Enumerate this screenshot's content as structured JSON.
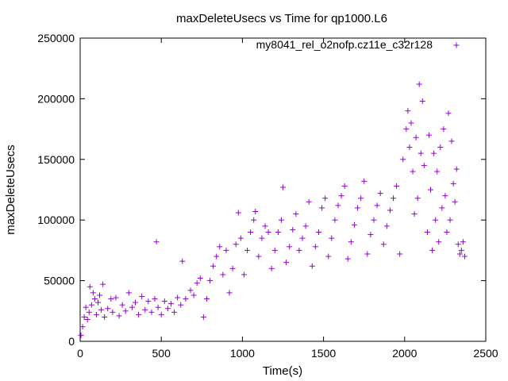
{
  "chart_data": {
    "type": "scatter",
    "title": "maxDeleteUsecs vs Time for qp1000.L6",
    "xlabel": "Time(s)",
    "ylabel": "maxDeleteUsecs",
    "xlim": [
      0,
      2500
    ],
    "ylim": [
      0,
      250000
    ],
    "xticks": [
      0,
      500,
      1000,
      1500,
      2000,
      2500
    ],
    "yticks": [
      0,
      50000,
      100000,
      150000,
      200000,
      250000
    ],
    "legend": {
      "placement": "top-right"
    },
    "series": [
      {
        "name": "my8041_rel_o2nofp.cz11e_c32r128",
        "color": "#9400d3",
        "marker": "plus",
        "points": [
          [
            5,
            5000
          ],
          [
            15,
            12000
          ],
          [
            25,
            20000
          ],
          [
            35,
            28000
          ],
          [
            45,
            18000
          ],
          [
            55,
            24000
          ],
          [
            60,
            45000
          ],
          [
            70,
            30000
          ],
          [
            80,
            40000
          ],
          [
            90,
            35000
          ],
          [
            100,
            22000
          ],
          [
            110,
            32000
          ],
          [
            120,
            38000
          ],
          [
            130,
            26000
          ],
          [
            140,
            47000
          ],
          [
            150,
            20000
          ],
          [
            170,
            27000
          ],
          [
            190,
            35000
          ],
          [
            200,
            24000
          ],
          [
            220,
            36000
          ],
          [
            240,
            21000
          ],
          [
            260,
            30000
          ],
          [
            280,
            25000
          ],
          [
            300,
            40000
          ],
          [
            320,
            28000
          ],
          [
            340,
            32000
          ],
          [
            360,
            22000
          ],
          [
            380,
            37000
          ],
          [
            400,
            26000
          ],
          [
            420,
            33000
          ],
          [
            440,
            24000
          ],
          [
            460,
            35000
          ],
          [
            480,
            28000
          ],
          [
            470,
            82000
          ],
          [
            500,
            22000
          ],
          [
            520,
            33000
          ],
          [
            540,
            27000
          ],
          [
            560,
            31000
          ],
          [
            580,
            24000
          ],
          [
            600,
            36000
          ],
          [
            620,
            30000
          ],
          [
            630,
            66000
          ],
          [
            650,
            35000
          ],
          [
            680,
            42000
          ],
          [
            700,
            38000
          ],
          [
            720,
            48000
          ],
          [
            740,
            52000
          ],
          [
            760,
            20000
          ],
          [
            780,
            35000
          ],
          [
            800,
            50000
          ],
          [
            820,
            62000
          ],
          [
            840,
            70000
          ],
          [
            860,
            78000
          ],
          [
            880,
            55000
          ],
          [
            900,
            75000
          ],
          [
            920,
            40000
          ],
          [
            940,
            60000
          ],
          [
            960,
            80000
          ],
          [
            975,
            106000
          ],
          [
            990,
            85000
          ],
          [
            1010,
            55000
          ],
          [
            1030,
            75000
          ],
          [
            1050,
            90000
          ],
          [
            1070,
            100000
          ],
          [
            1080,
            107000
          ],
          [
            1100,
            70000
          ],
          [
            1120,
            85000
          ],
          [
            1140,
            95000
          ],
          [
            1160,
            90000
          ],
          [
            1180,
            60000
          ],
          [
            1200,
            75000
          ],
          [
            1220,
            90000
          ],
          [
            1240,
            100000
          ],
          [
            1250,
            127000
          ],
          [
            1270,
            65000
          ],
          [
            1290,
            78000
          ],
          [
            1310,
            92000
          ],
          [
            1330,
            105000
          ],
          [
            1350,
            75000
          ],
          [
            1370,
            85000
          ],
          [
            1390,
            95000
          ],
          [
            1410,
            115000
          ],
          [
            1430,
            62000
          ],
          [
            1450,
            78000
          ],
          [
            1470,
            90000
          ],
          [
            1490,
            110000
          ],
          [
            1510,
            118000
          ],
          [
            1530,
            70000
          ],
          [
            1550,
            85000
          ],
          [
            1570,
            100000
          ],
          [
            1590,
            112000
          ],
          [
            1610,
            120000
          ],
          [
            1630,
            128000
          ],
          [
            1650,
            68000
          ],
          [
            1670,
            82000
          ],
          [
            1690,
            96000
          ],
          [
            1710,
            110000
          ],
          [
            1730,
            118000
          ],
          [
            1750,
            132000
          ],
          [
            1770,
            72000
          ],
          [
            1790,
            88000
          ],
          [
            1810,
            100000
          ],
          [
            1830,
            112000
          ],
          [
            1850,
            122000
          ],
          [
            1870,
            80000
          ],
          [
            1890,
            95000
          ],
          [
            1910,
            108000
          ],
          [
            1930,
            118000
          ],
          [
            1950,
            128000
          ],
          [
            1970,
            72000
          ],
          [
            1990,
            150000
          ],
          [
            2010,
            175000
          ],
          [
            2020,
            190000
          ],
          [
            2030,
            160000
          ],
          [
            2040,
            180000
          ],
          [
            2050,
            140000
          ],
          [
            2060,
            105000
          ],
          [
            2070,
            168000
          ],
          [
            2080,
            118000
          ],
          [
            2090,
            212000
          ],
          [
            2100,
            155000
          ],
          [
            2110,
            198000
          ],
          [
            2120,
            145000
          ],
          [
            2140,
            90000
          ],
          [
            2150,
            170000
          ],
          [
            2160,
            125000
          ],
          [
            2170,
            75000
          ],
          [
            2180,
            155000
          ],
          [
            2190,
            100000
          ],
          [
            2200,
            140000
          ],
          [
            2210,
            82000
          ],
          [
            2220,
            160000
          ],
          [
            2230,
            110000
          ],
          [
            2240,
            175000
          ],
          [
            2250,
            120000
          ],
          [
            2260,
            90000
          ],
          [
            2270,
            188000
          ],
          [
            2280,
            100000
          ],
          [
            2290,
            165000
          ],
          [
            2300,
            130000
          ],
          [
            2310,
            115000
          ],
          [
            2320,
            142000
          ],
          [
            2330,
            80000
          ],
          [
            2340,
            72000
          ],
          [
            2350,
            75000
          ],
          [
            2360,
            82000
          ],
          [
            2370,
            70000
          ]
        ]
      }
    ]
  }
}
